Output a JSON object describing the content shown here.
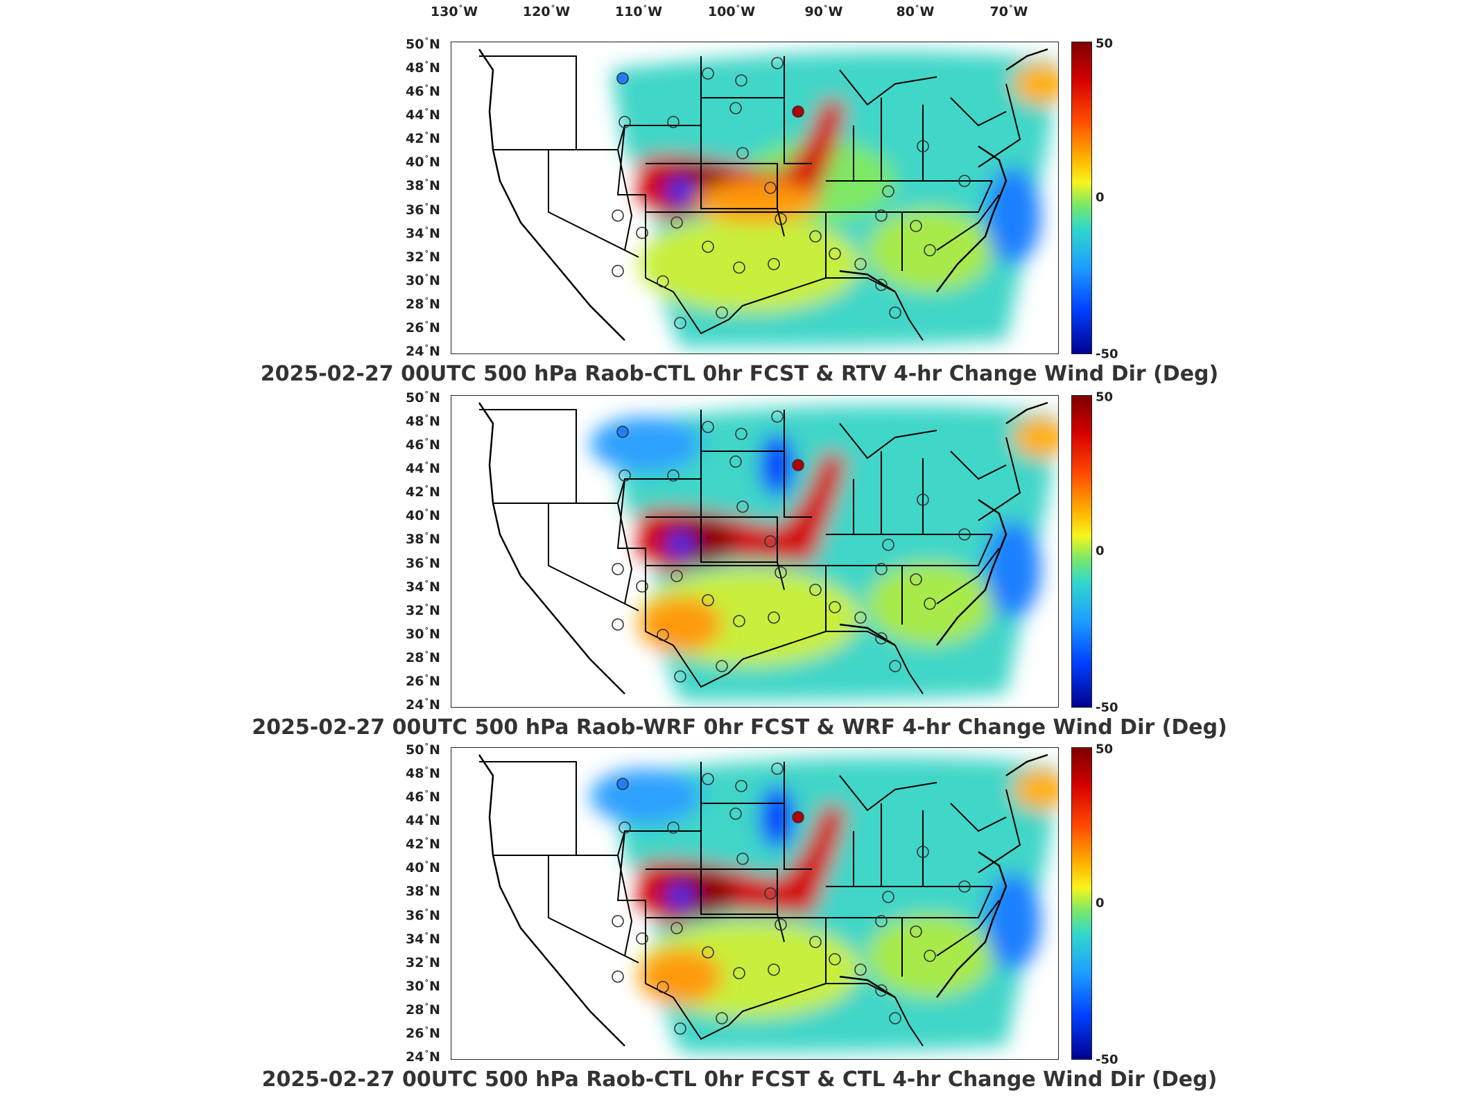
{
  "longitude_labels": [
    {
      "value": "130",
      "hemi": "W"
    },
    {
      "value": "120",
      "hemi": "W"
    },
    {
      "value": "110",
      "hemi": "W"
    },
    {
      "value": "100",
      "hemi": "W"
    },
    {
      "value": "90",
      "hemi": "W"
    },
    {
      "value": "80",
      "hemi": "W"
    },
    {
      "value": "70",
      "hemi": "W"
    }
  ],
  "latitude_labels": [
    "50",
    "48",
    "46",
    "44",
    "42",
    "40",
    "38",
    "36",
    "34",
    "32",
    "30",
    "28",
    "26",
    "24"
  ],
  "latitude_hemi": "N",
  "degree_symbol": "°",
  "colorbar": {
    "max_label": "50",
    "mid_label": "0",
    "min_label": "-50",
    "range": [
      -50,
      50
    ]
  },
  "colors": {
    "max": "#7f0000",
    "zero": "#7ee865",
    "min": "#00008f",
    "station_outline": "#333333"
  },
  "panels": [
    {
      "title": "2025-02-27 00UTC 500 hPa Raob-CTL 0hr FCST & RTV 4-hr Change Wind Dir (Deg)"
    },
    {
      "title": "2025-02-27 00UTC 500 hPa Raob-WRF 0hr FCST & WRF 4-hr Change Wind Dir (Deg)"
    },
    {
      "title": "2025-02-27 00UTC 500 hPa Raob-CTL 0hr FCST & CTL 4-hr Change Wind Dir (Deg)"
    }
  ]
}
